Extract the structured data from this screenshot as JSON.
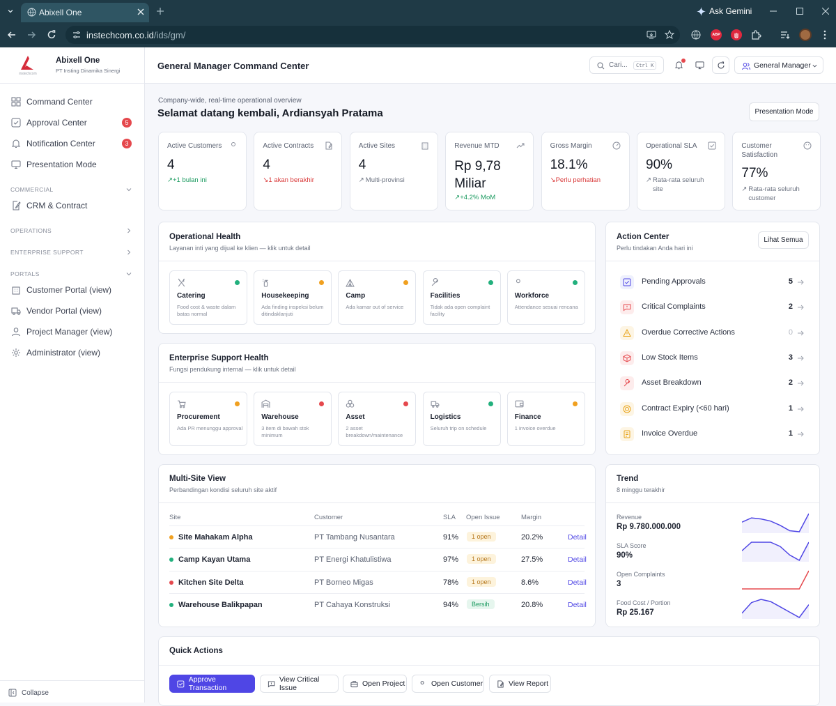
{
  "browser": {
    "tab_title": "Abixell One",
    "url_host": "instechcom.co.id",
    "url_path": "/ids/gm/",
    "ask_gemini": "Ask Gemini",
    "abp_badge": "ABP"
  },
  "sidebar": {
    "brand_name": "Abixell One",
    "brand_sub": "PT Insting Dinamika Sinergi",
    "logo_text": "instechcom",
    "items_top": [
      {
        "label": "Command Center",
        "icon": "grid-icon"
      },
      {
        "label": "Approval Center",
        "icon": "check-square-icon",
        "badge": "5"
      },
      {
        "label": "Notification Center",
        "icon": "bell-icon",
        "badge": "3"
      },
      {
        "label": "Presentation Mode",
        "icon": "monitor-icon"
      }
    ],
    "sections": [
      {
        "title": "COMMERCIAL"
      },
      {
        "title": "OPERATIONS"
      },
      {
        "title": "ENTERPRISE SUPPORT"
      },
      {
        "title": "PORTALS"
      }
    ],
    "commercial_items": [
      {
        "label": "CRM & Contract",
        "icon": "file-edit-icon"
      }
    ],
    "portal_items": [
      {
        "label": "Customer Portal (view)",
        "icon": "building-icon"
      },
      {
        "label": "Vendor Portal (view)",
        "icon": "truck-icon"
      },
      {
        "label": "Project Manager (view)",
        "icon": "user-icon"
      },
      {
        "label": "Administrator (view)",
        "icon": "gear-icon"
      }
    ],
    "collapse_label": "Collapse"
  },
  "header": {
    "title": "General Manager Command Center",
    "search_placeholder": "Cari...",
    "search_shortcut": "Ctrl K",
    "role_label": "General Manager"
  },
  "welcome": {
    "overline": "Company-wide, real-time operational overview",
    "greeting": "Selamat datang kembali, Ardiansyah Pratama",
    "presentation_button": "Presentation Mode"
  },
  "kpis": [
    {
      "label": "Active Customers",
      "value": "4",
      "sub": "+1 bulan ini",
      "tone": "green",
      "arrow": "↗"
    },
    {
      "label": "Active Contracts",
      "value": "4",
      "sub": "1 akan berakhir",
      "tone": "red",
      "arrow": "↘"
    },
    {
      "label": "Active Sites",
      "value": "4",
      "sub": "Multi-provinsi",
      "tone": "gray",
      "arrow": "↗"
    },
    {
      "label": "Revenue MTD",
      "value": "Rp 9,78 Miliar",
      "sub": "+4.2% MoM",
      "tone": "green",
      "arrow": "↗"
    },
    {
      "label": "Gross Margin",
      "value": "18.1%",
      "sub": "Perlu perhatian",
      "tone": "red",
      "arrow": "↘"
    },
    {
      "label": "Operational SLA",
      "value": "90%",
      "sub": "Rata-rata seluruh site",
      "tone": "gray",
      "arrow": "↗"
    },
    {
      "label": "Customer Satisfaction",
      "value": "77%",
      "sub": "Rata-rata seluruh customer",
      "tone": "gray",
      "arrow": "↗"
    }
  ],
  "operational_health": {
    "title": "Operational Health",
    "subtitle": "Layanan inti yang dijual ke klien — klik untuk detail",
    "tiles": [
      {
        "name": "Catering",
        "desc": "Food cost & waste dalam batas normal",
        "status_color": "#22b07d"
      },
      {
        "name": "Housekeeping",
        "desc": "Ada finding inspeksi belum ditindaklanjuti",
        "status_color": "#f0a020"
      },
      {
        "name": "Camp",
        "desc": "Ada kamar out of service",
        "status_color": "#f0a020"
      },
      {
        "name": "Facilities",
        "desc": "Tidak ada open complaint facility",
        "status_color": "#22b07d"
      },
      {
        "name": "Workforce",
        "desc": "Attendance sesuai rencana",
        "status_color": "#22b07d"
      }
    ]
  },
  "enterprise_health": {
    "title": "Enterprise Support Health",
    "subtitle": "Fungsi pendukung internal — klik untuk detail",
    "tiles": [
      {
        "name": "Procurement",
        "desc": "Ada PR menunggu approval",
        "status_color": "#f0a020"
      },
      {
        "name": "Warehouse",
        "desc": "3 item di bawah stok minimum",
        "status_color": "#e5484d"
      },
      {
        "name": "Asset",
        "desc": "2 asset breakdown/maintenance",
        "status_color": "#e5484d"
      },
      {
        "name": "Logistics",
        "desc": "Seluruh trip on schedule",
        "status_color": "#22b07d"
      },
      {
        "name": "Finance",
        "desc": "1 invoice overdue",
        "status_color": "#f0a020"
      }
    ]
  },
  "action_center": {
    "title": "Action Center",
    "subtitle": "Perlu tindakan Anda hari ini",
    "see_all": "Lihat Semua",
    "items": [
      {
        "label": "Pending Approvals",
        "count": "5",
        "color": "#4f46e5",
        "bg": "#eef0fd"
      },
      {
        "label": "Critical Complaints",
        "count": "2",
        "color": "#e5484d",
        "bg": "#fdecec"
      },
      {
        "label": "Overdue Corrective Actions",
        "count": "0",
        "color": "#e8a317",
        "bg": "#fdf5e4"
      },
      {
        "label": "Low Stock Items",
        "count": "3",
        "color": "#e5484d",
        "bg": "#fdecec"
      },
      {
        "label": "Asset Breakdown",
        "count": "2",
        "color": "#e5484d",
        "bg": "#fdecec"
      },
      {
        "label": "Contract Expiry (<60 hari)",
        "count": "1",
        "color": "#e8a317",
        "bg": "#fdf5e4"
      },
      {
        "label": "Invoice Overdue",
        "count": "1",
        "color": "#e8a317",
        "bg": "#fdf5e4"
      }
    ]
  },
  "multisite": {
    "title": "Multi-Site View",
    "subtitle": "Perbandingan kondisi seluruh site aktif",
    "columns": [
      "Site",
      "Customer",
      "SLA",
      "Open Issue",
      "Margin"
    ],
    "rows": [
      {
        "site": "Site Mahakam Alpha",
        "customer": "PT Tambang Nusantara",
        "sla": "91%",
        "issue": "1 open",
        "margin": "20.2%",
        "detail": "Detail",
        "status_color": "#f0a020",
        "issue_tone": "warn"
      },
      {
        "site": "Camp Kayan Utama",
        "customer": "PT Energi Khatulistiwa",
        "sla": "97%",
        "issue": "1 open",
        "margin": "27.5%",
        "detail": "Detail",
        "status_color": "#22b07d",
        "issue_tone": "warn"
      },
      {
        "site": "Kitchen Site Delta",
        "customer": "PT Borneo Migas",
        "sla": "78%",
        "issue": "1 open",
        "margin": "8.6%",
        "detail": "Detail",
        "status_color": "#e5484d",
        "issue_tone": "warn"
      },
      {
        "site": "Warehouse Balikpapan",
        "customer": "PT Cahaya Konstruksi",
        "sla": "94%",
        "issue": "Bersih",
        "margin": "20.8%",
        "detail": "Detail",
        "status_color": "#22b07d",
        "issue_tone": "ok"
      }
    ]
  },
  "trend": {
    "title": "Trend",
    "subtitle": "8 minggu terakhir",
    "rows": [
      {
        "label": "Revenue",
        "value": "Rp 9.780.000.000",
        "color": "#4f46e5",
        "points": [
          6,
          8,
          7.5,
          6.5,
          4.5,
          2,
          1.5,
          10
        ]
      },
      {
        "label": "SLA Score",
        "value": "90%",
        "color": "#4f46e5",
        "points": [
          5,
          9,
          9,
          9,
          7,
          3,
          0.5,
          9
        ]
      },
      {
        "label": "Open Complaints",
        "value": "3",
        "color": "#e5484d",
        "points": [
          0,
          0,
          0,
          0,
          0,
          0,
          0,
          10
        ]
      },
      {
        "label": "Food Cost / Portion",
        "value": "Rp 25.167",
        "color": "#4f46e5",
        "points": [
          2,
          7,
          8.5,
          7.5,
          5,
          2.5,
          0,
          6
        ]
      }
    ]
  },
  "quick_actions": {
    "title": "Quick Actions",
    "buttons": [
      {
        "label": "Approve Transaction",
        "icon": "check-square-icon",
        "primary": true
      },
      {
        "label": "View Critical Issue",
        "icon": "message-alert-icon"
      },
      {
        "label": "Open Project",
        "icon": "briefcase-icon"
      },
      {
        "label": "Open Customer",
        "icon": "users-icon"
      },
      {
        "label": "View Report",
        "icon": "file-edit-icon"
      }
    ]
  }
}
